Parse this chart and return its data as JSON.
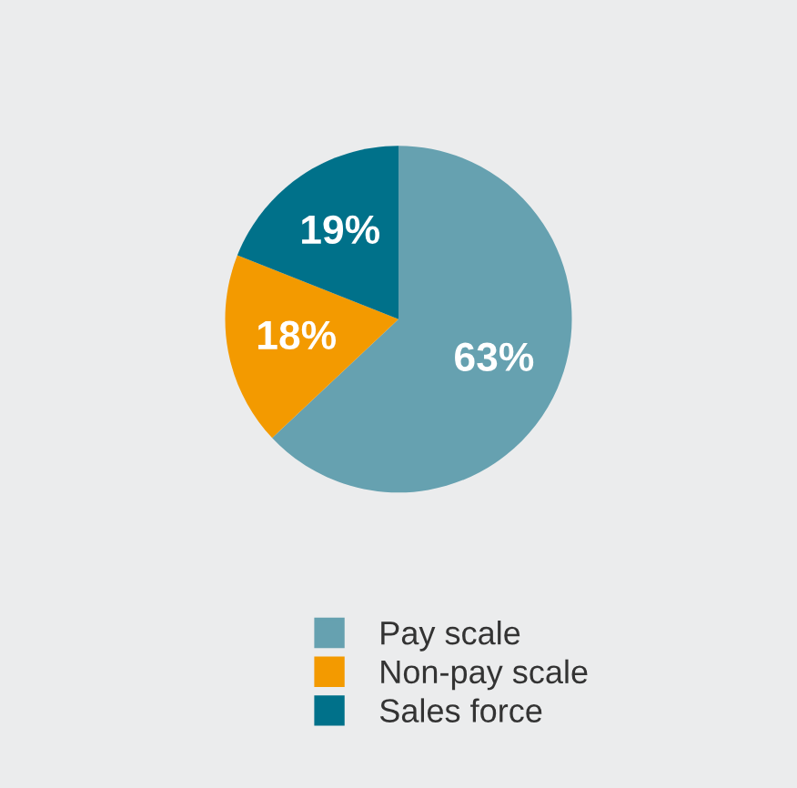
{
  "chart_data": {
    "type": "pie",
    "categories": [
      "Pay scale",
      "Non-pay scale",
      "Sales force"
    ],
    "values": [
      63,
      18,
      19
    ],
    "colors": [
      "#66a1b0",
      "#f39a00",
      "#00718a"
    ],
    "value_labels": [
      "63%",
      "18%",
      "19%"
    ],
    "legend": "bottom"
  }
}
